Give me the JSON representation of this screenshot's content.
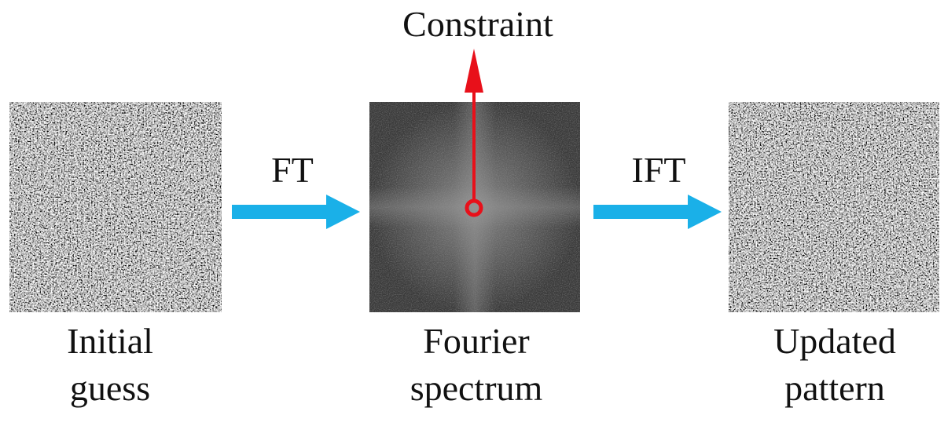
{
  "constraint": "Constraint",
  "steps": [
    "FT",
    "IFT"
  ],
  "nodes": [
    {
      "label": [
        "Initial",
        "guess"
      ]
    },
    {
      "label": [
        "Fourier",
        "spectrum"
      ]
    },
    {
      "label": [
        "Updated",
        "pattern"
      ]
    }
  ]
}
